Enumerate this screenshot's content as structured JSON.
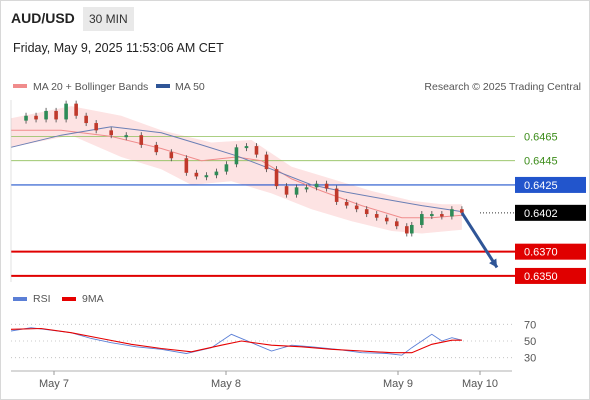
{
  "header": {
    "symbol": "AUD/USD",
    "timeframe": "30 MIN",
    "datetime": "Friday, May 9, 2025 11:53:06 AM CET"
  },
  "legend": {
    "items": [
      {
        "label": "MA 20 + Bollinger Bands",
        "color": "#f08c8c"
      },
      {
        "label": "MA 50",
        "color": "#2f5597"
      }
    ],
    "credit": "Research © 2025 Trading Central"
  },
  "rsi_legend": {
    "items": [
      {
        "label": "RSI",
        "color": "#5b7fd6"
      },
      {
        "label": "9MA",
        "color": "#e60000"
      }
    ]
  },
  "colors": {
    "resistance_lines": "#8fbf5a",
    "pivot": "#2255cc",
    "support": "#e00000",
    "current_price_badge": "#000000",
    "bollinger_fill": "#fde3e3",
    "candle_up": "#2e8b57",
    "candle_down": "#c0392b",
    "arrow": "#2f5597"
  },
  "chart_data": [
    {
      "type": "line",
      "title": "AUD/USD 30 MIN",
      "x_ticks": [
        "May 7",
        "May 8",
        "May 9",
        "May 10"
      ],
      "ylim": [
        0.6345,
        0.6495
      ],
      "y_levels": [
        {
          "value": 0.6465,
          "kind": "resistance",
          "label": "0.6465"
        },
        {
          "value": 0.6445,
          "kind": "resistance",
          "label": "0.6445"
        },
        {
          "value": 0.6425,
          "kind": "pivot",
          "label": "0.6425"
        },
        {
          "value": 0.6402,
          "kind": "current",
          "label": "0.6402"
        },
        {
          "value": 0.637,
          "kind": "support",
          "label": "0.6370"
        },
        {
          "value": 0.635,
          "kind": "support",
          "label": "0.6350"
        }
      ],
      "series": [
        {
          "name": "Price",
          "points": [
            [
              0,
              0.6478
            ],
            [
              3,
              0.6482
            ],
            [
              5,
              0.6479
            ],
            [
              7,
              0.6486
            ],
            [
              9,
              0.6479
            ],
            [
              11,
              0.6492
            ],
            [
              13,
              0.6482
            ],
            [
              15,
              0.6476
            ],
            [
              17,
              0.647
            ],
            [
              20,
              0.6466
            ],
            [
              23,
              0.6466
            ],
            [
              26,
              0.6458
            ],
            [
              29,
              0.6452
            ],
            [
              32,
              0.6447
            ],
            [
              35,
              0.6435
            ],
            [
              37,
              0.6432
            ],
            [
              39,
              0.6433
            ],
            [
              41,
              0.6436
            ],
            [
              43,
              0.6442
            ],
            [
              45,
              0.6456
            ],
            [
              47,
              0.6457
            ],
            [
              49,
              0.645
            ],
            [
              51,
              0.6438
            ],
            [
              53,
              0.6424
            ],
            [
              55,
              0.6417
            ],
            [
              57,
              0.6423
            ],
            [
              59,
              0.6423
            ],
            [
              61,
              0.6426
            ],
            [
              63,
              0.6422
            ],
            [
              65,
              0.6411
            ],
            [
              67,
              0.6408
            ],
            [
              69,
              0.6405
            ],
            [
              71,
              0.6401
            ],
            [
              73,
              0.6398
            ],
            [
              75,
              0.6395
            ],
            [
              77,
              0.6391
            ],
            [
              79,
              0.6385
            ],
            [
              80,
              0.6392
            ],
            [
              82,
              0.6401
            ],
            [
              84,
              0.6401
            ],
            [
              86,
              0.6399
            ],
            [
              88,
              0.6405
            ],
            [
              90,
              0.6402
            ]
          ]
        },
        {
          "name": "MA 20",
          "points": [
            [
              0,
              0.647
            ],
            [
              10,
              0.647
            ],
            [
              20,
              0.6465
            ],
            [
              30,
              0.6455
            ],
            [
              38,
              0.6445
            ],
            [
              45,
              0.6448
            ],
            [
              50,
              0.6445
            ],
            [
              56,
              0.643
            ],
            [
              62,
              0.642
            ],
            [
              70,
              0.6408
            ],
            [
              78,
              0.6398
            ],
            [
              84,
              0.6398
            ],
            [
              90,
              0.64
            ]
          ]
        },
        {
          "name": "MA 50",
          "points": [
            [
              0,
              0.6456
            ],
            [
              10,
              0.6466
            ],
            [
              20,
              0.6473
            ],
            [
              30,
              0.6468
            ],
            [
              38,
              0.6458
            ],
            [
              45,
              0.6449
            ],
            [
              52,
              0.6438
            ],
            [
              60,
              0.6425
            ],
            [
              67,
              0.6419
            ],
            [
              75,
              0.6413
            ],
            [
              82,
              0.6408
            ],
            [
              90,
              0.6403
            ]
          ]
        },
        {
          "name": "Bollinger Upper",
          "points": [
            [
              0,
              0.648
            ],
            [
              12,
              0.649
            ],
            [
              22,
              0.6482
            ],
            [
              30,
              0.647
            ],
            [
              40,
              0.646
            ],
            [
              48,
              0.6462
            ],
            [
              56,
              0.644
            ],
            [
              64,
              0.643
            ],
            [
              72,
              0.642
            ],
            [
              80,
              0.6412
            ],
            [
              86,
              0.6409
            ],
            [
              90,
              0.6409
            ]
          ]
        },
        {
          "name": "Bollinger Lower",
          "points": [
            [
              0,
              0.6456
            ],
            [
              12,
              0.6466
            ],
            [
              22,
              0.6448
            ],
            [
              30,
              0.6438
            ],
            [
              36,
              0.6425
            ],
            [
              44,
              0.6428
            ],
            [
              52,
              0.6418
            ],
            [
              60,
              0.6405
            ],
            [
              68,
              0.6395
            ],
            [
              76,
              0.6387
            ],
            [
              82,
              0.6385
            ],
            [
              90,
              0.6388
            ]
          ]
        },
        {
          "name": "Forecast",
          "points": [
            [
              90,
              0.6402
            ],
            [
              97,
              0.6357
            ]
          ]
        }
      ]
    },
    {
      "type": "line",
      "title": "RSI",
      "ylim": [
        20,
        80
      ],
      "y_ticks": [
        70,
        50,
        30
      ],
      "series": [
        {
          "name": "RSI",
          "points": [
            [
              0,
              62
            ],
            [
              4,
              66
            ],
            [
              8,
              63
            ],
            [
              12,
              60
            ],
            [
              16,
              53
            ],
            [
              20,
              48
            ],
            [
              25,
              43
            ],
            [
              30,
              40
            ],
            [
              35,
              35
            ],
            [
              40,
              42
            ],
            [
              44,
              58
            ],
            [
              48,
              48
            ],
            [
              52,
              38
            ],
            [
              56,
              45
            ],
            [
              60,
              43
            ],
            [
              65,
              40
            ],
            [
              70,
              36
            ],
            [
              75,
              35
            ],
            [
              78,
              33
            ],
            [
              80,
              42
            ],
            [
              84,
              58
            ],
            [
              86,
              50
            ],
            [
              88,
              54
            ],
            [
              90,
              51
            ]
          ]
        },
        {
          "name": "9MA",
          "points": [
            [
              0,
              64
            ],
            [
              6,
              65
            ],
            [
              12,
              60
            ],
            [
              18,
              53
            ],
            [
              24,
              46
            ],
            [
              30,
              41
            ],
            [
              36,
              37
            ],
            [
              42,
              45
            ],
            [
              46,
              50
            ],
            [
              52,
              45
            ],
            [
              58,
              43
            ],
            [
              64,
              40
            ],
            [
              70,
              38
            ],
            [
              76,
              36
            ],
            [
              80,
              36
            ],
            [
              84,
              46
            ],
            [
              88,
              51
            ],
            [
              90,
              51
            ]
          ]
        }
      ]
    }
  ]
}
